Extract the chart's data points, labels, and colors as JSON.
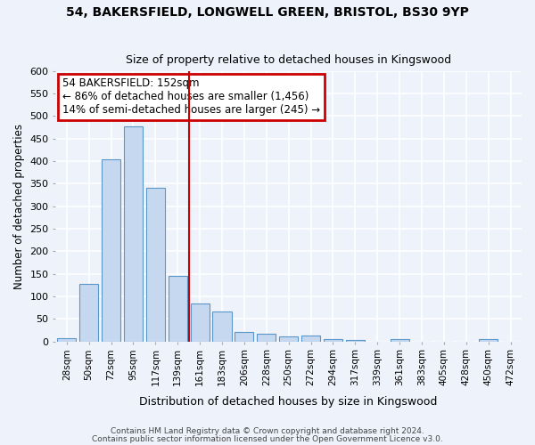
{
  "title1": "54, BAKERSFIELD, LONGWELL GREEN, BRISTOL, BS30 9YP",
  "title2": "Size of property relative to detached houses in Kingswood",
  "xlabel": "Distribution of detached houses by size in Kingswood",
  "ylabel": "Number of detached properties",
  "categories": [
    "28sqm",
    "50sqm",
    "72sqm",
    "95sqm",
    "117sqm",
    "139sqm",
    "161sqm",
    "183sqm",
    "206sqm",
    "228sqm",
    "250sqm",
    "272sqm",
    "294sqm",
    "317sqm",
    "339sqm",
    "361sqm",
    "383sqm",
    "405sqm",
    "428sqm",
    "450sqm",
    "472sqm"
  ],
  "values": [
    8,
    127,
    405,
    477,
    340,
    145,
    85,
    67,
    20,
    18,
    12,
    14,
    6,
    4,
    0,
    5,
    0,
    0,
    0,
    5,
    0
  ],
  "bar_color": "#c5d8f0",
  "bar_edge_color": "#5a96c8",
  "property_line_x": 5.5,
  "annotation_title": "54 BAKERSFIELD: 152sqm",
  "annotation_line1": "← 86% of detached houses are smaller (1,456)",
  "annotation_line2": "14% of semi-detached houses are larger (245) →",
  "annotation_box_color": "#ffffff",
  "annotation_box_edge_color": "#cc0000",
  "vline_color": "#cc0000",
  "ylim": [
    0,
    600
  ],
  "yticks": [
    0,
    50,
    100,
    150,
    200,
    250,
    300,
    350,
    400,
    450,
    500,
    550,
    600
  ],
  "footer1": "Contains HM Land Registry data © Crown copyright and database right 2024.",
  "footer2": "Contains public sector information licensed under the Open Government Licence v3.0.",
  "bg_color": "#edf2fb",
  "grid_color": "#ffffff"
}
